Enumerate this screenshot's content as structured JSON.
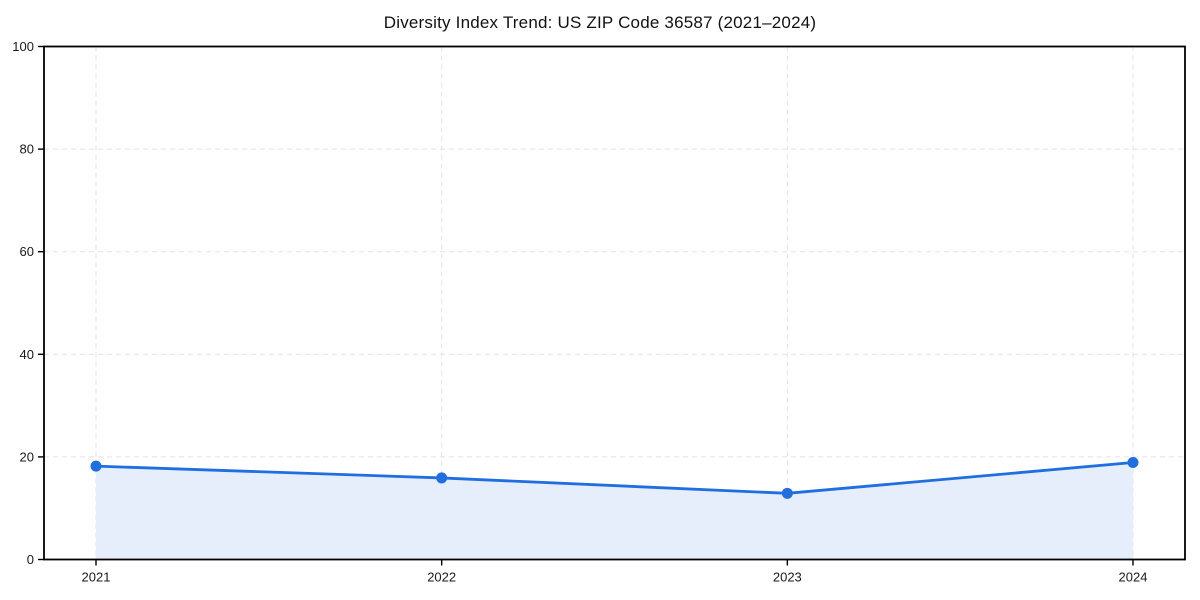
{
  "chart_data": {
    "type": "area",
    "title": "Diversity Index Trend: US ZIP Code 36587 (2021–2024)",
    "x": [
      "2021",
      "2022",
      "2023",
      "2024"
    ],
    "series": [
      {
        "name": "Diversity Index",
        "values": [
          18.2,
          15.9,
          12.9,
          18.9
        ]
      }
    ],
    "xlabel": "",
    "ylabel": "",
    "ylim": [
      0,
      100
    ],
    "yticks": [
      0,
      20,
      40,
      60,
      80,
      100
    ],
    "grid": "dashed-both-axes",
    "legend": "none",
    "marker": "circle",
    "colors": {
      "line": "#1f6fe0",
      "marker": "#1f6fe0",
      "fill": "#e6eefc",
      "grid": "#e3e3e3",
      "axis": "#000000",
      "text": "#1a1a1a"
    }
  }
}
